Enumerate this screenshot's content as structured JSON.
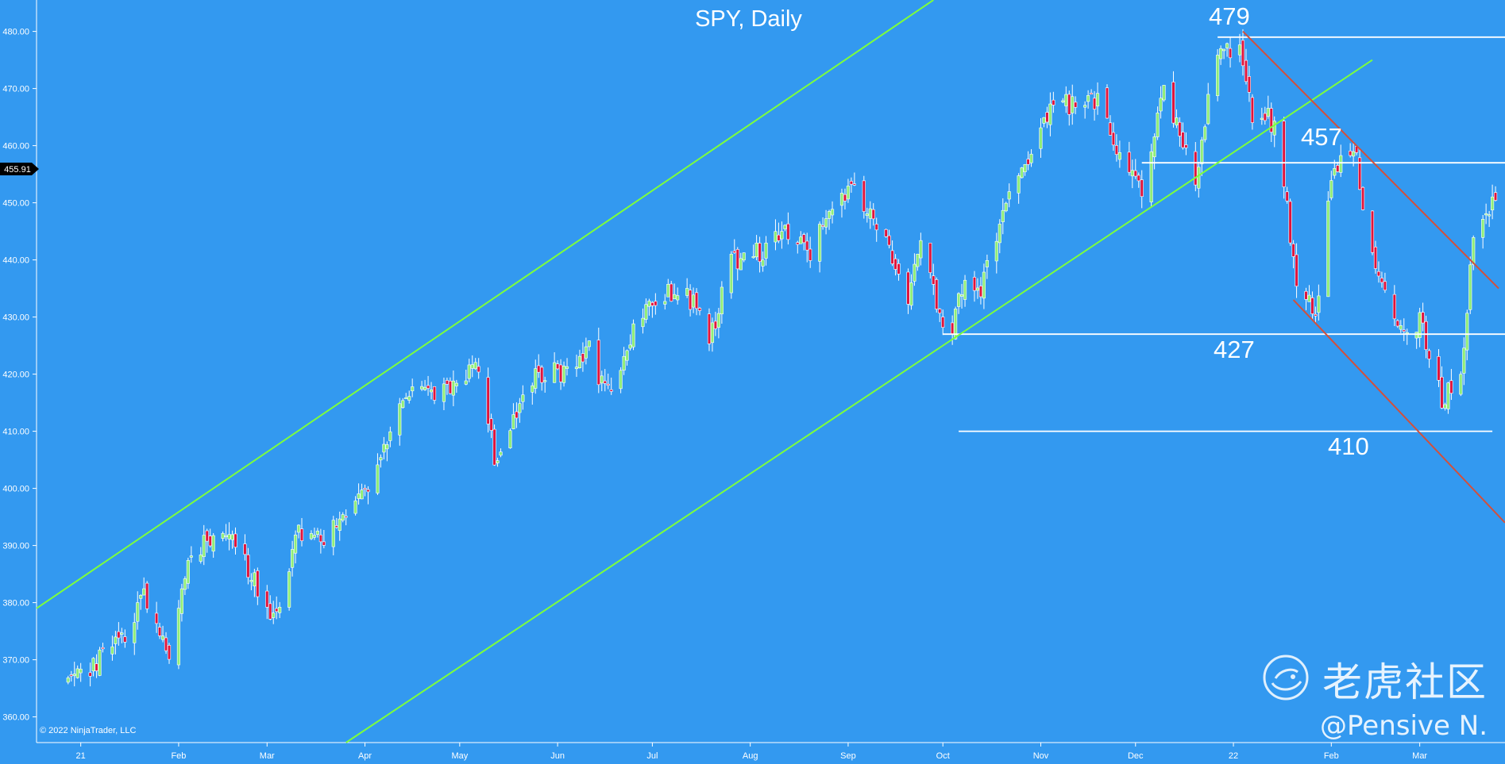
{
  "chart_data": {
    "type": "candlestick",
    "title": "SPY, Daily",
    "xlabel": "",
    "ylabel": "",
    "ylim": [
      355.5,
      485.5
    ],
    "y_ticks": [
      360,
      370,
      380,
      390,
      400,
      410,
      420,
      430,
      440,
      450,
      460,
      470,
      480
    ],
    "y_tick_labels": [
      "360.00",
      "370.00",
      "380.00",
      "390.00",
      "400.00",
      "410.00",
      "420.00",
      "430.00",
      "440.00",
      "450.00",
      "460.00",
      "470.00",
      "480.00"
    ],
    "x_tick_labels": [
      "21",
      "Feb",
      "Mar",
      "Apr",
      "May",
      "Jun",
      "Jul",
      "Aug",
      "Sep",
      "Oct",
      "Nov",
      "Dec",
      "22",
      "Feb",
      "Mar"
    ],
    "x_tick_dates": [
      "2021-01-01",
      "2021-02-01",
      "2021-03-01",
      "2021-04-01",
      "2021-05-01",
      "2021-06-01",
      "2021-07-01",
      "2021-08-01",
      "2021-09-01",
      "2021-10-01",
      "2021-11-01",
      "2021-12-01",
      "2022-01-01",
      "2022-02-01",
      "2022-03-01"
    ],
    "x_range": [
      "2020-12-18",
      "2022-03-28"
    ],
    "last_price": 455.91,
    "last_price_label": "455.91",
    "up_color": "#90ee78",
    "down_color": "#e0143c",
    "background": "#3399f0",
    "trend_color": "#7dff3c",
    "resistance_color": "#d2503c",
    "level_color": "#ffffff",
    "close_path": [
      [
        "2020-12-28",
        366
      ],
      [
        "2021-01-04",
        368
      ],
      [
        "2021-01-08",
        372
      ],
      [
        "2021-01-15",
        373
      ],
      [
        "2021-01-21",
        381
      ],
      [
        "2021-01-29",
        371
      ],
      [
        "2021-02-05",
        389
      ],
      [
        "2021-02-12",
        392
      ],
      [
        "2021-02-19",
        391
      ],
      [
        "2021-02-26",
        382
      ],
      [
        "2021-03-04",
        377
      ],
      [
        "2021-03-11",
        393
      ],
      [
        "2021-03-19",
        390
      ],
      [
        "2021-03-26",
        396
      ],
      [
        "2021-04-01",
        400
      ],
      [
        "2021-04-09",
        411
      ],
      [
        "2021-04-16",
        417
      ],
      [
        "2021-04-23",
        417
      ],
      [
        "2021-04-30",
        418
      ],
      [
        "2021-05-07",
        422
      ],
      [
        "2021-05-12",
        406
      ],
      [
        "2021-05-18",
        411
      ],
      [
        "2021-05-24",
        419
      ],
      [
        "2021-06-04",
        421
      ],
      [
        "2021-06-11",
        424
      ],
      [
        "2021-06-18",
        415
      ],
      [
        "2021-06-25",
        427
      ],
      [
        "2021-07-02",
        434
      ],
      [
        "2021-07-09",
        435
      ],
      [
        "2021-07-16",
        432
      ],
      [
        "2021-07-19",
        425
      ],
      [
        "2021-07-26",
        440
      ],
      [
        "2021-08-06",
        442
      ],
      [
        "2021-08-13",
        445
      ],
      [
        "2021-08-20",
        440
      ],
      [
        "2021-08-27",
        450
      ],
      [
        "2021-09-02",
        453
      ],
      [
        "2021-09-10",
        446
      ],
      [
        "2021-09-20",
        434
      ],
      [
        "2021-09-24",
        443
      ],
      [
        "2021-09-30",
        430
      ],
      [
        "2021-10-04",
        428
      ],
      [
        "2021-10-08",
        437
      ],
      [
        "2021-10-13",
        434
      ],
      [
        "2021-10-22",
        453
      ],
      [
        "2021-10-29",
        459
      ],
      [
        "2021-11-05",
        468
      ],
      [
        "2021-11-12",
        467
      ],
      [
        "2021-11-19",
        468
      ],
      [
        "2021-11-26",
        458
      ],
      [
        "2021-11-30",
        455
      ],
      [
        "2021-12-03",
        453
      ],
      [
        "2021-12-10",
        469
      ],
      [
        "2021-12-17",
        459
      ],
      [
        "2021-12-20",
        454
      ],
      [
        "2021-12-27",
        477
      ],
      [
        "2022-01-03",
        477
      ],
      [
        "2022-01-07",
        466
      ],
      [
        "2022-01-14",
        464
      ],
      [
        "2022-01-21",
        437
      ],
      [
        "2022-01-27",
        431
      ],
      [
        "2022-02-02",
        457
      ],
      [
        "2022-02-09",
        457
      ],
      [
        "2022-02-14",
        440
      ],
      [
        "2022-02-18",
        434
      ],
      [
        "2022-02-24",
        428
      ],
      [
        "2022-03-01",
        429
      ],
      [
        "2022-03-08",
        416
      ],
      [
        "2022-03-14",
        418
      ],
      [
        "2022-03-18",
        444
      ],
      [
        "2022-03-25",
        452
      ]
    ],
    "trendlines": [
      {
        "role": "channel-upper",
        "from": [
          "2020-12-18",
          379
        ],
        "to": [
          "2021-09-28",
          485.5
        ]
      },
      {
        "role": "channel-lower",
        "from": [
          "2021-03-26",
          355.5
        ],
        "to": [
          "2022-02-14",
          475
        ]
      },
      {
        "role": "downtrend-upper",
        "from": [
          "2022-01-04",
          480
        ],
        "to": [
          "2022-03-26",
          435
        ]
      },
      {
        "role": "downtrend-lower",
        "from": [
          "2022-01-20",
          433
        ],
        "to": [
          "2022-03-28",
          394
        ]
      }
    ],
    "levels": [
      {
        "value": 479,
        "label": "479",
        "from": "2021-12-27",
        "to": "2022-03-28"
      },
      {
        "value": 457,
        "label": "457",
        "from": "2021-12-03",
        "to": "2022-03-28"
      },
      {
        "value": 427,
        "label": "427",
        "from": "2021-10-01",
        "to": "2022-03-28"
      },
      {
        "value": 410,
        "label": "410",
        "from": "2021-10-06",
        "to": "2022-03-24"
      }
    ]
  },
  "footer": {
    "copyright": "© 2022 NinjaTrader, LLC"
  },
  "watermark": {
    "brand": "老虎社区",
    "author": "@Pensive N."
  }
}
